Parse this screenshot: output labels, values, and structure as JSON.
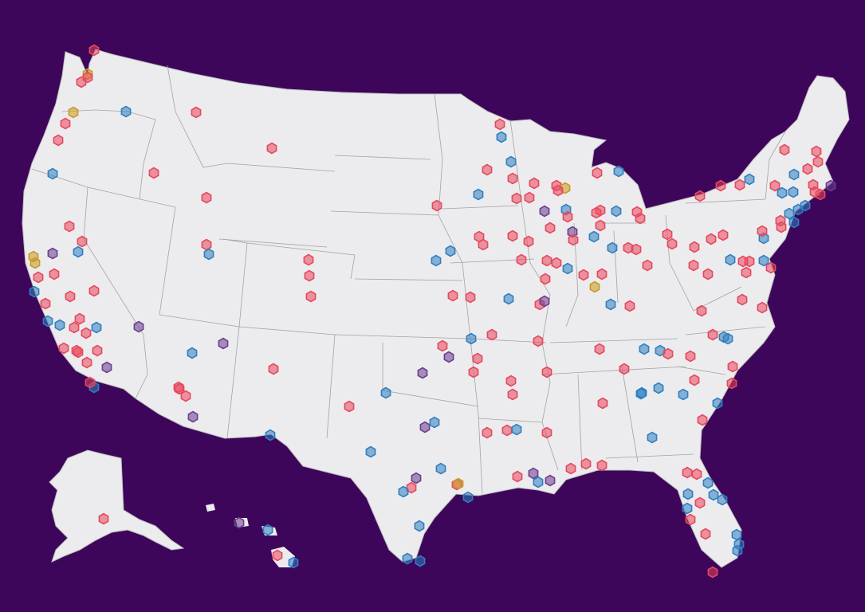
{
  "map": {
    "background_color": "#3d065a",
    "land_color": "#ececee",
    "border_color": "#9a9a9a",
    "marker_shape": "hexagon",
    "marker_colors": {
      "red": "#e8475c",
      "blue": "#2f7fc1",
      "purple": "#6b3d8e",
      "gold": "#c99a22"
    },
    "regions": [
      "contiguous-us",
      "alaska",
      "hawaii"
    ]
  }
}
